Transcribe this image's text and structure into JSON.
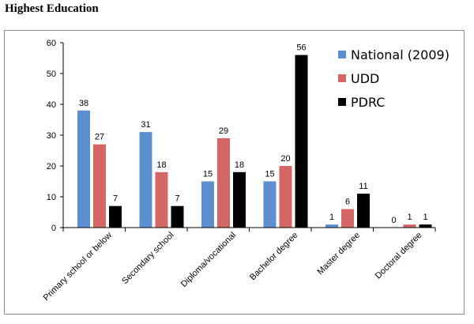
{
  "header": {
    "title": "Highest Education"
  },
  "chart_data": {
    "type": "bar",
    "title": "",
    "xlabel": "",
    "ylabel": "",
    "ylim": [
      0,
      60
    ],
    "yticks": [
      0,
      10,
      20,
      30,
      40,
      50,
      60
    ],
    "grid": false,
    "legend_position": "top-right",
    "categories": [
      "Primary school or below",
      "Secondary school",
      "Diploma/vocational",
      "Bachelor degree",
      "Master degree",
      "Doctoral degree"
    ],
    "series": [
      {
        "name": "National (2009)",
        "color": "#5b8fd0",
        "values": [
          38,
          31,
          15,
          15,
          1,
          0
        ]
      },
      {
        "name": "UDD",
        "color": "#d46766",
        "values": [
          27,
          18,
          29,
          20,
          6,
          1
        ]
      },
      {
        "name": "PDRC",
        "color": "#000000",
        "values": [
          7,
          7,
          18,
          56,
          11,
          1
        ]
      }
    ]
  }
}
